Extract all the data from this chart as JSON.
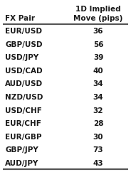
{
  "col1_header": "FX Pair",
  "col2_header": "1D Implied\nMove (pips)",
  "rows": [
    [
      "EUR/USD",
      "36"
    ],
    [
      "GBP/USD",
      "56"
    ],
    [
      "USD/JPY",
      "39"
    ],
    [
      "USD/CAD",
      "40"
    ],
    [
      "AUD/USD",
      "34"
    ],
    [
      "NZD/USD",
      "34"
    ],
    [
      "USD/CHF",
      "32"
    ],
    [
      "EUR/CHF",
      "28"
    ],
    [
      "EUR/GBP",
      "30"
    ],
    [
      "GBP/JPY",
      "73"
    ],
    [
      "AUD/JPY",
      "43"
    ]
  ],
  "bg_color": "#ffffff",
  "text_color": "#1a1a1a",
  "line_color": "#555555",
  "font_size": 7.5,
  "header_font_size": 7.5,
  "fig_width": 1.84,
  "fig_height": 2.49,
  "dpi": 100
}
